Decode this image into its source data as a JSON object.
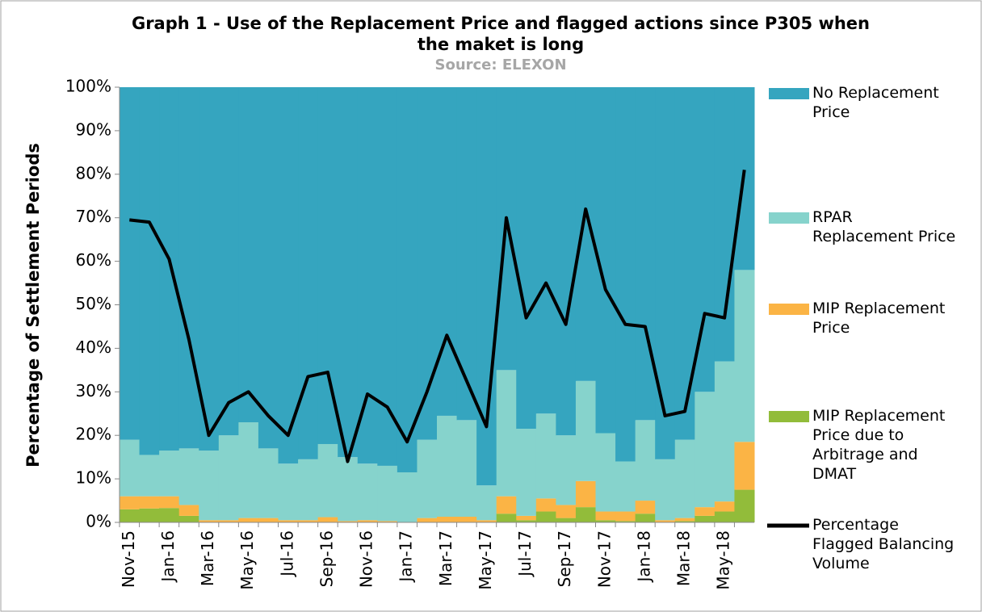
{
  "chart_data": {
    "type": "stacked-area-line",
    "title": "Graph 1 - Use of the Replacement Price and flagged actions since P305 when the maket is long",
    "subtitle": "Source: ELEXON",
    "y_label": "Percentage of Settlement Periods",
    "categories": [
      "Nov-15",
      null,
      "Jan-16",
      null,
      "Mar-16",
      null,
      "May-16",
      null,
      "Jul-16",
      null,
      "Sep-16",
      null,
      "Nov-16",
      null,
      "Jan-17",
      null,
      "Mar-17",
      null,
      "May-17",
      null,
      "Jul-17",
      null,
      "Sep-17",
      null,
      "Nov-17",
      null,
      "Jan-18",
      null,
      "Mar-18",
      null,
      "May-18",
      null
    ],
    "series": [
      {
        "name": "No Replacement Price",
        "color": "#35a5bf",
        "values": [
          81,
          84.5,
          83.5,
          83,
          83.5,
          80,
          77,
          83,
          86.5,
          85.5,
          82,
          85,
          86.5,
          87,
          88.5,
          81,
          75.5,
          76.5,
          91.5,
          65,
          78.5,
          75,
          80,
          67.5,
          79.5,
          86,
          76.5,
          85.5,
          81,
          70,
          63,
          42
        ]
      },
      {
        "name": "RPAR Replacement Price",
        "color": "#86d3cc",
        "values": [
          13,
          9.5,
          10.5,
          13,
          16,
          19.5,
          22,
          16,
          13,
          14,
          16.8,
          14.7,
          13,
          12.7,
          11.5,
          18,
          23.2,
          22.2,
          8,
          29,
          20,
          19.5,
          16,
          23,
          18,
          11.5,
          18.5,
          14,
          18,
          26.5,
          32.2,
          39.5
        ]
      },
      {
        "name": "MIP Replacement Price",
        "color": "#fbb445",
        "values": [
          3,
          2.8,
          2.7,
          2.5,
          0.5,
          0.5,
          1,
          1,
          0.5,
          0.5,
          1.2,
          0.3,
          0.5,
          0.3,
          0,
          1,
          1.3,
          1.3,
          0.5,
          4,
          1,
          3,
          3,
          6,
          2,
          2.2,
          3,
          0.5,
          0.7,
          2,
          2.3,
          11
        ]
      },
      {
        "name": "MIP Replacement Price due to Arbitrage and DMAT",
        "color": "#92bc3a",
        "values": [
          3,
          3.2,
          3.3,
          1.5,
          0,
          0,
          0,
          0,
          0,
          0,
          0,
          0,
          0,
          0,
          0,
          0,
          0,
          0,
          0,
          2,
          0.5,
          2.5,
          1,
          3.5,
          0.5,
          0.3,
          2,
          0,
          0.3,
          1.5,
          2.5,
          7.5
        ]
      },
      {
        "name": "Percentage Flagged Balancing Volume",
        "color": "#000000",
        "type": "line",
        "values": [
          69.5,
          69,
          60.5,
          42,
          20,
          27.5,
          30,
          24.5,
          20,
          33.5,
          34.5,
          14,
          29.5,
          26.5,
          18.5,
          30,
          43,
          32.5,
          22,
          70,
          47,
          55,
          45.5,
          72,
          53.5,
          45.5,
          45,
          24.5,
          25.5,
          48,
          47,
          81
        ]
      }
    ],
    "ylim": [
      0,
      100
    ],
    "yticks": [
      {
        "value": 0,
        "label": "0%"
      },
      {
        "value": 10,
        "label": "10%"
      },
      {
        "value": 20,
        "label": "20%"
      },
      {
        "value": 30,
        "label": "30%"
      },
      {
        "value": 40,
        "label": "40%"
      },
      {
        "value": 50,
        "label": "50%"
      },
      {
        "value": 60,
        "label": "60%"
      },
      {
        "value": 70,
        "label": "70%"
      },
      {
        "value": 80,
        "label": "80%"
      },
      {
        "value": 90,
        "label": "90%"
      },
      {
        "value": 100,
        "label": "100%"
      }
    ],
    "legend": "right"
  }
}
